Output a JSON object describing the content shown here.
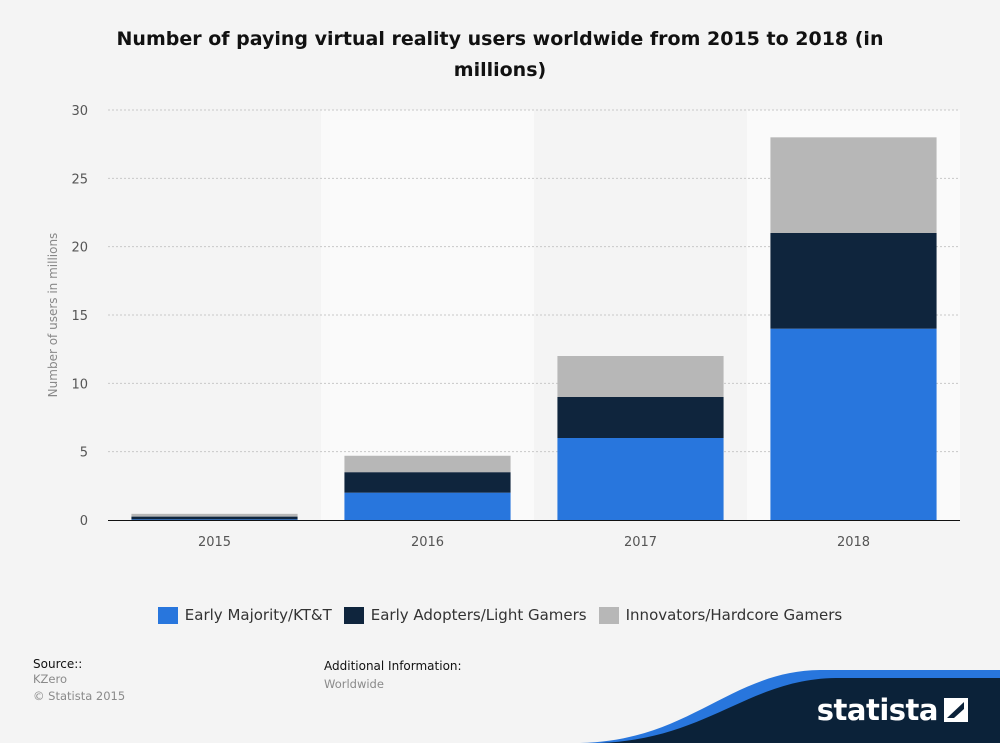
{
  "chart_data": {
    "type": "bar",
    "stacked": true,
    "title": "Number of paying virtual reality users worldwide from 2015 to 2018 (in millions)",
    "ylabel": "Number of users in millions",
    "xlabel": "",
    "categories": [
      "2015",
      "2016",
      "2017",
      "2018"
    ],
    "ylim": [
      0,
      30
    ],
    "yticks": [
      0,
      5,
      10,
      15,
      20,
      25,
      30
    ],
    "grid": true,
    "legend_position": "bottom",
    "series": [
      {
        "name": "Early Majority/KT&T",
        "color": "#2876dd",
        "values": [
          0.05,
          2,
          6,
          14
        ]
      },
      {
        "name": "Early Adopters/Light Gamers",
        "color": "#0f253d",
        "values": [
          0.2,
          1.5,
          3,
          7
        ]
      },
      {
        "name": "Innovators/Hardcore Gamers",
        "color": "#b7b7b7",
        "values": [
          0.2,
          1.2,
          3,
          7
        ]
      }
    ]
  },
  "source": {
    "label": "Source::",
    "lines": [
      "KZero",
      "© Statista 2015"
    ]
  },
  "additional_info": {
    "label": "Additional Information:",
    "value": "Worldwide"
  },
  "brand": "statista",
  "colors": {
    "brand_dark": "#0b2239",
    "brand_blue": "#2876dd"
  }
}
